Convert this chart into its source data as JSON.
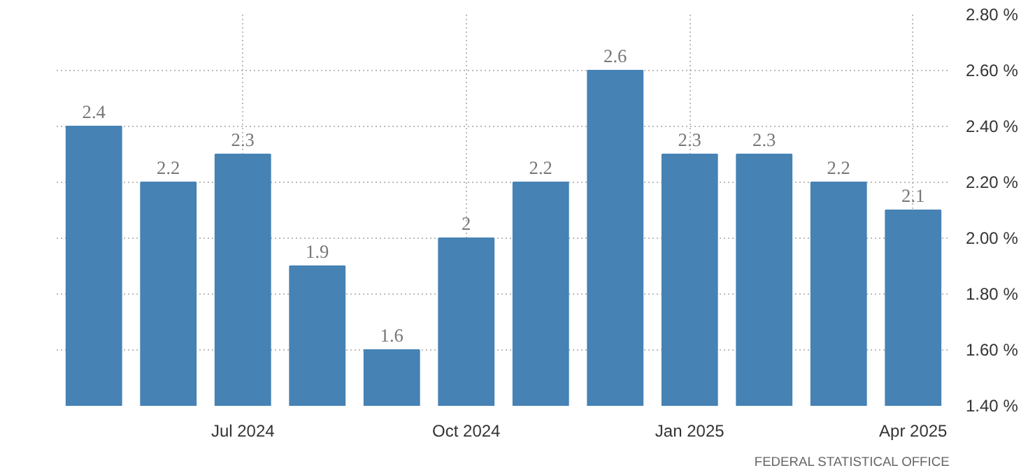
{
  "chart_data": {
    "type": "bar",
    "categories": [
      null,
      null,
      "Jul 2024",
      null,
      null,
      "Oct 2024",
      null,
      null,
      "Jan 2025",
      null,
      null,
      "Apr 2025"
    ],
    "values": [
      2.4,
      2.2,
      2.3,
      1.9,
      1.6,
      2,
      2.2,
      2.6,
      2.3,
      2.3,
      2.2,
      2.1
    ],
    "color": "#4682b4",
    "data_labels": true,
    "ylim": [
      1.4,
      2.8
    ],
    "yticks": [
      {
        "value": 1.4,
        "label": "1.40 %"
      },
      {
        "value": 1.6,
        "label": "1.60 %"
      },
      {
        "value": 1.8,
        "label": "1.80 %"
      },
      {
        "value": 2.0,
        "label": "2.00 %"
      },
      {
        "value": 2.2,
        "label": "2.20 %"
      },
      {
        "value": 2.4,
        "label": "2.40 %"
      },
      {
        "value": 2.6,
        "label": "2.60 %"
      },
      {
        "value": 2.8,
        "label": "2.80 %"
      }
    ],
    "grid": true,
    "annotations": [
      "FEDERAL STATISTICAL OFFICE"
    ]
  }
}
